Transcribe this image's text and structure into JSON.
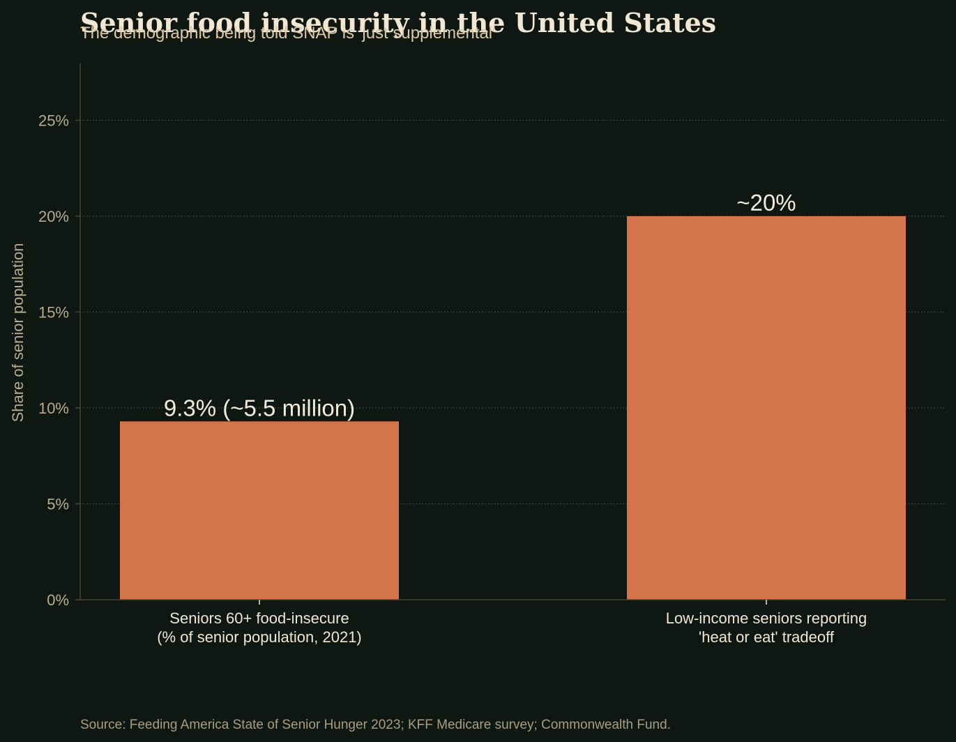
{
  "chart_data": {
    "type": "bar",
    "title": "Senior food insecurity in the United States",
    "subtitle": "The demographic being told SNAP is 'just supplemental'",
    "ylabel": "Share of senior population",
    "xlabel": "",
    "ylim": [
      0,
      28
    ],
    "yticks": [
      0,
      5,
      10,
      15,
      20,
      25
    ],
    "ytick_labels": [
      "0%",
      "5%",
      "10%",
      "15%",
      "20%",
      "25%"
    ],
    "grid": "horizontal dotted",
    "categories": [
      [
        "Seniors 60+ food-insecure",
        "(% of senior population, 2021)"
      ],
      [
        "Low-income seniors reporting",
        "'heat or eat' tradeoff"
      ]
    ],
    "values": [
      9.3,
      20
    ],
    "data_labels": [
      "9.3% (~5.5 million)",
      "~20%"
    ],
    "source": "Source: Feeding America State of Senior Hunger 2023; KFF Medicare survey; Commonwealth Fund.",
    "colors": {
      "background": "#0e1711",
      "bar": "#d4744a",
      "title": "#f1e7d3",
      "subtitle": "#dcc9a4",
      "tick": "#b8ab8e",
      "axis": "#4a4330",
      "grid": "#4d5147",
      "category_text": "#efe6d3",
      "data_label": "#f3ecdc",
      "source": "#a99d82"
    }
  }
}
